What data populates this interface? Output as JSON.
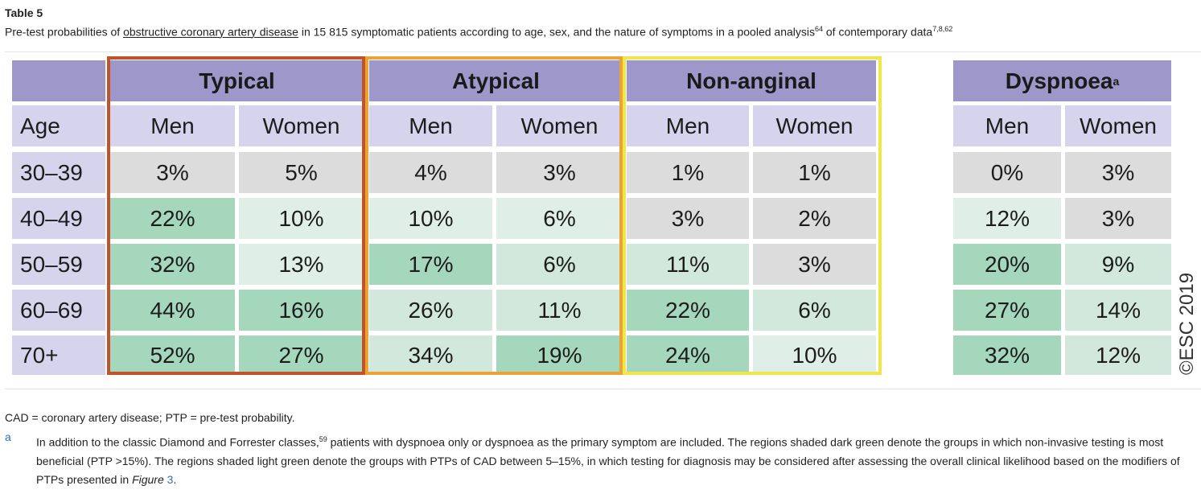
{
  "title": "Table 5",
  "caption": {
    "pre": "Pre-test probabilities of ",
    "link": "obstructive coronary artery disease",
    "mid": " in 15 815 symptomatic patients according to age, sex, and the nature of symptoms in a pooled analysis",
    "sup1": "64",
    "mid2": " of contemporary data",
    "sup2": "7,8,62"
  },
  "table": {
    "groups": [
      "Typical",
      "Atypical",
      "Non-anginal",
      "Dyspnoea"
    ],
    "dyspnoea_sup": "a",
    "age_header": "Age",
    "sub_headers": [
      "Men",
      "Women",
      "Men",
      "Women",
      "Men",
      "Women",
      "Men",
      "Women"
    ],
    "rows": [
      {
        "age": "30–39",
        "values": [
          "3%",
          "5%",
          "4%",
          "3%",
          "1%",
          "1%",
          "0%",
          "3%"
        ]
      },
      {
        "age": "40–49",
        "values": [
          "22%",
          "10%",
          "10%",
          "6%",
          "3%",
          "2%",
          "12%",
          "3%"
        ]
      },
      {
        "age": "50–59",
        "values": [
          "32%",
          "13%",
          "17%",
          "6%",
          "11%",
          "3%",
          "20%",
          "9%"
        ]
      },
      {
        "age": "60–69",
        "values": [
          "44%",
          "16%",
          "26%",
          "11%",
          "22%",
          "6%",
          "27%",
          "14%"
        ]
      },
      {
        "age": "70+",
        "values": [
          "52%",
          "27%",
          "34%",
          "19%",
          "24%",
          "10%",
          "32%",
          "12%"
        ]
      }
    ],
    "shading": [
      [
        "grey",
        "grey",
        "grey",
        "grey",
        "grey",
        "grey",
        "grey",
        "grey"
      ],
      [
        "dark",
        "vlight",
        "vlight",
        "vlight",
        "grey",
        "grey",
        "vlight",
        "grey"
      ],
      [
        "dark",
        "vlight",
        "dark",
        "light",
        "light",
        "grey",
        "dark",
        "light"
      ],
      [
        "dark",
        "dark",
        "light",
        "light",
        "dark",
        "light",
        "dark",
        "light"
      ],
      [
        "dark",
        "dark",
        "light",
        "dark",
        "dark",
        "vlight",
        "dark",
        "light"
      ]
    ],
    "copyright": "©ESC 2019"
  },
  "footnotes": {
    "abbrev": "CAD = coronary artery disease; PTP = pre-test probability.",
    "marker": "a",
    "text_pre": "In addition to the classic Diamond and Forrester classes,",
    "sup": "59",
    "text_mid": " patients with dyspnoea only or dyspnoea as the primary symptom are included. The regions shaded dark green denote the groups in which non-invasive testing is most beneficial (PTP >15%). The regions shaded light green denote the groups with PTPs of CAD between 5–15%, in which testing for diagnosis may be considered after assessing the overall clinical likelihood based on the modifiers of PTPs presented in ",
    "fig_word": "Figure",
    "fig_num": "3",
    "text_end": "."
  }
}
